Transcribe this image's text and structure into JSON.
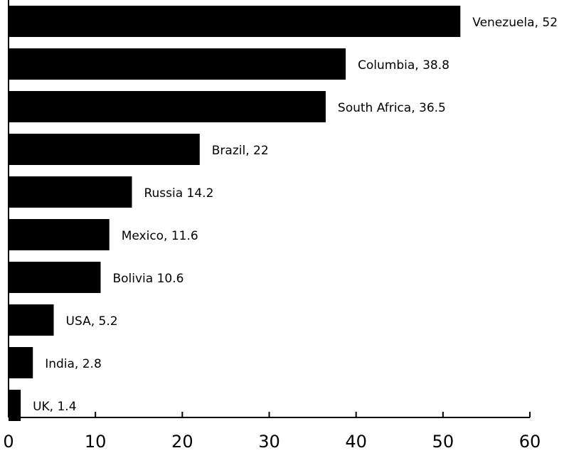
{
  "chart_data": {
    "type": "barh",
    "values": [
      52,
      38.8,
      36.5,
      22,
      14.2,
      11.6,
      10.6,
      5.2,
      2.8,
      1.4
    ],
    "value_labels": [
      "Venezuela, 52",
      "Columbia, 38.8",
      "South Africa, 36.5",
      "Brazil, 22",
      "Russia 14.2",
      "Mexico, 11.6",
      "Bolivia 10.6",
      "USA, 5.2",
      "India, 2.8",
      "UK, 1.4"
    ],
    "color": "#000000",
    "xlim": [
      0,
      60
    ],
    "xticks": [
      0,
      10,
      20,
      30,
      40,
      50,
      60
    ]
  }
}
